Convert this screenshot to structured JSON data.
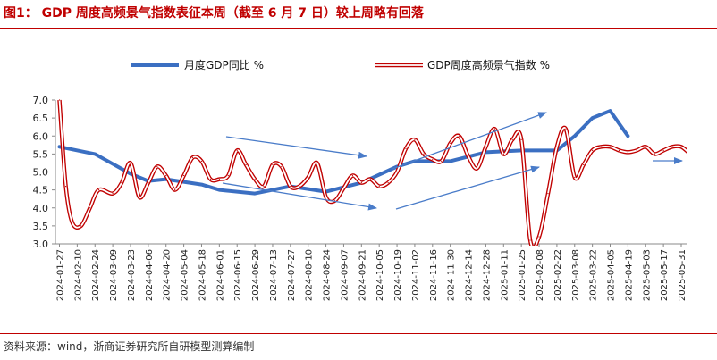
{
  "figure": {
    "title": "图1：  GDP 周度高频景气指数表征本周（截至 6 月 7 日）较上周略有回落",
    "source": "资料来源：wind，浙商证券研究所自研模型测算编制",
    "colors": {
      "title": "#c00000",
      "gdp_line": "#3b6fc2",
      "freq_line": "#c00000",
      "arrow": "#4a7cc9"
    }
  },
  "chart_data": {
    "type": "line",
    "ylim": [
      3.0,
      7.0
    ],
    "yticks": [
      "3.0",
      "3.5",
      "4.0",
      "4.5",
      "5.0",
      "5.5",
      "6.0",
      "6.5",
      "7.0"
    ],
    "xticks": [
      "2024-01-27",
      "2024-02-10",
      "2024-02-24",
      "2024-03-09",
      "2024-03-23",
      "2024-04-06",
      "2024-04-20",
      "2024-05-04",
      "2024-05-18",
      "2024-06-01",
      "2024-06-15",
      "2024-06-29",
      "2024-07-13",
      "2024-07-27",
      "2024-08-10",
      "2024-08-24",
      "2024-09-07",
      "2024-09-21",
      "2024-10-05",
      "2024-10-19",
      "2024-11-02",
      "2024-11-16",
      "2024-11-30",
      "2024-12-14",
      "2024-12-28",
      "2025-01-11",
      "2025-01-25",
      "2025-02-08",
      "2025-02-22",
      "2025-03-08",
      "2025-03-22",
      "2025-04-05",
      "2025-04-19",
      "2025-05-03",
      "2025-05-17",
      "2025-05-31"
    ],
    "legend_position": "top",
    "grid": false,
    "series": [
      {
        "name": "月度GDP同比 %",
        "color": "#3b6fc2",
        "x": [
          "2024-01-27",
          "2024-02-24",
          "2024-03-23",
          "2024-04-06",
          "2024-04-20",
          "2024-05-18",
          "2024-06-01",
          "2024-06-29",
          "2024-07-27",
          "2024-08-24",
          "2024-09-21",
          "2024-10-19",
          "2024-11-02",
          "2024-11-30",
          "2024-12-28",
          "2025-01-25",
          "2025-02-22",
          "2025-03-08",
          "2025-03-22",
          "2025-04-05",
          "2025-04-19"
        ],
        "values": [
          5.7,
          5.5,
          4.95,
          4.75,
          4.8,
          4.65,
          4.5,
          4.4,
          4.6,
          4.45,
          4.7,
          5.15,
          5.3,
          5.3,
          5.55,
          5.6,
          5.6,
          6.0,
          6.5,
          6.7,
          6.0
        ]
      },
      {
        "name": "GDP周度高频景气指数 %",
        "color": "#c00000",
        "x": [
          "2024-01-27",
          "2024-02-01",
          "2024-02-06",
          "2024-02-13",
          "2024-02-20",
          "2024-02-27",
          "2024-03-09",
          "2024-03-16",
          "2024-03-23",
          "2024-03-30",
          "2024-04-06",
          "2024-04-13",
          "2024-04-20",
          "2024-04-27",
          "2024-05-04",
          "2024-05-11",
          "2024-05-18",
          "2024-05-25",
          "2024-06-01",
          "2024-06-08",
          "2024-06-15",
          "2024-06-22",
          "2024-06-29",
          "2024-07-06",
          "2024-07-13",
          "2024-07-20",
          "2024-07-27",
          "2024-08-03",
          "2024-08-10",
          "2024-08-17",
          "2024-08-24",
          "2024-08-31",
          "2024-09-07",
          "2024-09-14",
          "2024-09-21",
          "2024-09-28",
          "2024-10-05",
          "2024-10-12",
          "2024-10-19",
          "2024-10-26",
          "2024-11-02",
          "2024-11-09",
          "2024-11-16",
          "2024-11-23",
          "2024-11-30",
          "2024-12-07",
          "2024-12-14",
          "2024-12-21",
          "2024-12-28",
          "2025-01-04",
          "2025-01-11",
          "2025-01-18",
          "2025-01-25",
          "2025-02-01",
          "2025-02-08",
          "2025-02-15",
          "2025-02-22",
          "2025-03-01",
          "2025-03-08",
          "2025-03-15",
          "2025-03-22",
          "2025-03-29",
          "2025-04-05",
          "2025-04-12",
          "2025-04-19",
          "2025-04-26",
          "2025-05-03",
          "2025-05-10",
          "2025-05-17",
          "2025-05-24",
          "2025-05-31",
          "2025-06-07"
        ],
        "values": [
          7.0,
          4.6,
          3.6,
          3.5,
          4.0,
          4.5,
          4.4,
          4.7,
          5.25,
          4.3,
          4.7,
          5.15,
          4.9,
          4.5,
          4.9,
          5.4,
          5.3,
          4.8,
          4.8,
          4.9,
          5.6,
          5.2,
          4.8,
          4.6,
          5.2,
          5.15,
          4.6,
          4.6,
          4.85,
          5.25,
          4.3,
          4.2,
          4.55,
          4.9,
          4.7,
          4.8,
          4.6,
          4.7,
          5.0,
          5.65,
          5.9,
          5.5,
          5.35,
          5.3,
          5.8,
          6.0,
          5.45,
          5.1,
          5.7,
          6.2,
          5.5,
          5.9,
          5.9,
          3.1,
          3.2,
          4.4,
          5.7,
          6.2,
          4.85,
          5.2,
          5.6,
          5.7,
          5.7,
          5.6,
          5.55,
          5.6,
          5.7,
          5.5,
          5.6,
          5.7,
          5.7,
          5.5
        ]
      }
    ]
  }
}
